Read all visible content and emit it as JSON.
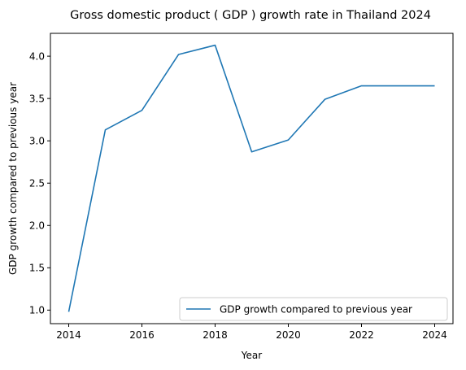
{
  "chart_data": {
    "type": "line",
    "title": "Gross domestic product ( GDP ) growth rate in Thailand 2024",
    "xlabel": "Year",
    "ylabel": "GDP growth compared to previous year",
    "x": [
      2014,
      2015,
      2016,
      2017,
      2018,
      2019,
      2020,
      2021,
      2022,
      2023,
      2024
    ],
    "series": [
      {
        "name": "GDP growth compared to previous year",
        "values": [
          0.98,
          3.13,
          3.36,
          4.02,
          4.13,
          2.87,
          3.01,
          3.49,
          3.65,
          3.65,
          3.65
        ],
        "color": "#1f77b4"
      }
    ],
    "xlim": [
      2013.5,
      2024.5
    ],
    "ylim": [
      0.84,
      4.27
    ],
    "xticks": [
      2014,
      2016,
      2018,
      2020,
      2022,
      2024
    ],
    "yticks": [
      1.0,
      1.5,
      2.0,
      2.5,
      3.0,
      3.5,
      4.0
    ],
    "ytick_labels": [
      "1.0",
      "1.5",
      "2.0",
      "2.5",
      "3.0",
      "3.5",
      "4.0"
    ],
    "grid": false,
    "legend_position": "lower-right"
  }
}
